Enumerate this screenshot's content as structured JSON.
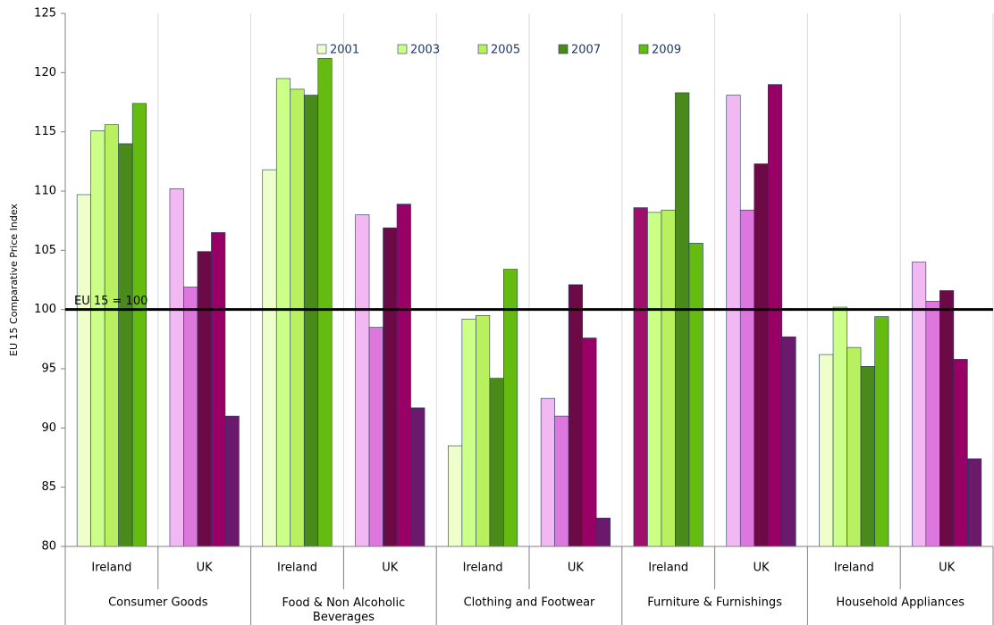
{
  "chart_data": {
    "type": "bar",
    "y_label": "EU 15 Comparative Price Index",
    "categories": [
      "Ireland",
      "UK",
      "Ireland",
      "UK",
      "Ireland",
      "UK",
      "Ireland",
      "UK",
      "Ireland",
      "UK"
    ],
    "category_groups": [
      "Consumer Goods",
      "Food & Non Alcoholic Beverages",
      "Clothing and Footwear",
      "Furniture & Furnishings",
      "Household Appliances"
    ],
    "series": [
      {
        "name": "2001",
        "color": "#eeffcc",
        "colors": [
          "#eeffcc",
          "#f2b8f2",
          "#eeffcc",
          "#f2b8f2",
          "#eeffcc",
          "#f2b8f2",
          "#a0106a",
          "#f2b8f2",
          "#eeffcc",
          "#f2b8f2"
        ],
        "values": [
          109.7,
          110.2,
          111.8,
          108.0,
          88.5,
          92.5,
          108.6,
          118.1,
          96.2,
          104.0
        ]
      },
      {
        "name": "2003",
        "color": "#ccff88",
        "colors": [
          "#ccff88",
          "#dd77dd",
          "#ccff88",
          "#dd77dd",
          "#ccff88",
          "#dd77dd",
          "#ccff88",
          "#dd77dd",
          "#ccff88",
          "#dd77dd"
        ],
        "values": [
          115.1,
          101.9,
          119.5,
          98.5,
          99.2,
          91.0,
          108.2,
          108.4,
          100.2,
          100.7
        ]
      },
      {
        "name": "2005",
        "color": "#b8f060",
        "colors": [
          "#b8f060",
          "#6b0a45",
          "#b8f060",
          "#6b0a45",
          "#b8f060",
          "#6b0a45",
          "#b8f060",
          "#6b0a45",
          "#b8f060",
          "#6b0a45"
        ],
        "values": [
          115.6,
          104.9,
          118.6,
          106.9,
          99.5,
          102.1,
          108.4,
          112.3,
          96.8,
          101.6
        ]
      },
      {
        "name": "2007",
        "color": "#4a8a1a",
        "colors": [
          "#4a8a1a",
          "#990066",
          "#4a8a1a",
          "#990066",
          "#4a8a1a",
          "#990066",
          "#4a8a1a",
          "#990066",
          "#4a8a1a",
          "#990066"
        ],
        "values": [
          114.0,
          106.5,
          118.1,
          108.9,
          94.2,
          97.6,
          118.3,
          119.0,
          95.2,
          95.8
        ]
      },
      {
        "name": "2009",
        "color": "#66bb11",
        "colors": [
          "#66bb11",
          "#6b1a6b",
          "#66bb11",
          "#6b1a6b",
          "#66bb11",
          "#6b1a6b",
          "#66bb11",
          "#6b1a6b",
          "#66bb11",
          "#6b1a6b"
        ],
        "values": [
          117.4,
          91.0,
          121.2,
          91.7,
          103.4,
          82.4,
          105.6,
          97.7,
          99.4,
          87.4
        ]
      }
    ],
    "reference_line": {
      "value": 100,
      "label": "EU 15 = 100"
    },
    "ylim": [
      80,
      125
    ],
    "yticks": [
      80,
      85,
      90,
      95,
      100,
      105,
      110,
      115,
      120,
      125
    ],
    "grid": "vertical",
    "legend": "top"
  }
}
